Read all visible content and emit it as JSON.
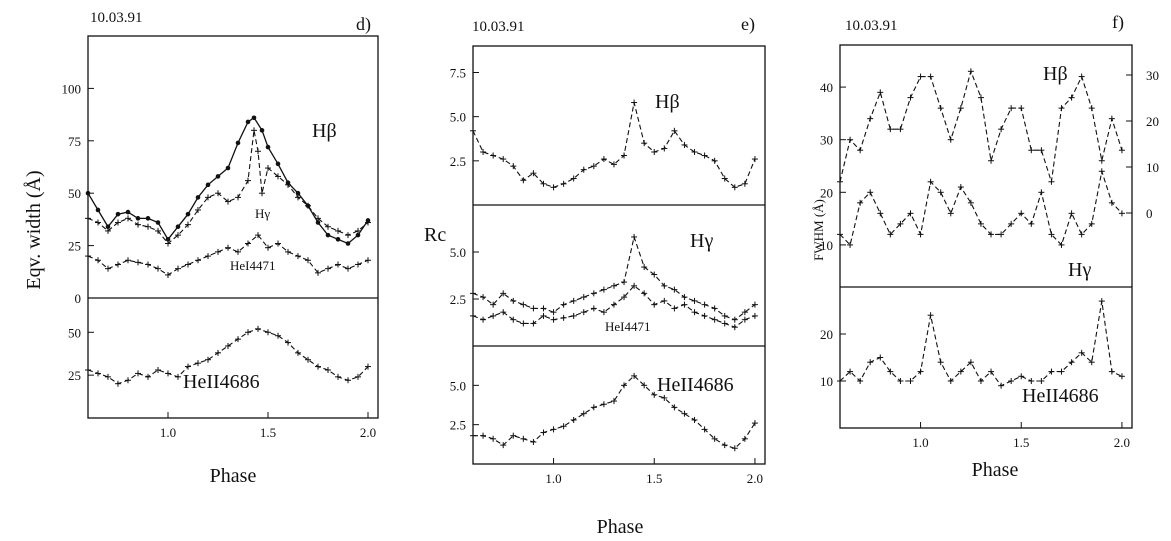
{
  "chart_data": [
    {
      "type": "line",
      "panel": "d)",
      "date": "10.03.91",
      "xlabel": "Phase",
      "ylabel": "Eqv. width (Å)",
      "x_ticks": [
        "1.0",
        "1.5",
        "2.0"
      ],
      "x_range": [
        0.6,
        2.05
      ],
      "subplots": [
        {
          "y_range": [
            0,
            125
          ],
          "y_ticks": [
            "0",
            "25",
            "50",
            "75",
            "100"
          ],
          "series": [
            {
              "name": "Hβ",
              "style": "solid",
              "x": [
                0.6,
                0.65,
                0.7,
                0.75,
                0.8,
                0.85,
                0.9,
                0.95,
                1.0,
                1.05,
                1.1,
                1.15,
                1.2,
                1.25,
                1.3,
                1.35,
                1.4,
                1.43,
                1.47,
                1.5,
                1.55,
                1.6,
                1.65,
                1.7,
                1.75,
                1.8,
                1.85,
                1.9,
                1.95,
                2.0
              ],
              "y": [
                50,
                42,
                34,
                40,
                41,
                38,
                38,
                36,
                28,
                34,
                40,
                48,
                54,
                58,
                62,
                74,
                84,
                86,
                80,
                72,
                64,
                55,
                50,
                44,
                36,
                30,
                28,
                26,
                30,
                37
              ]
            },
            {
              "name": "Hγ",
              "style": "dashed",
              "x": [
                0.6,
                0.65,
                0.7,
                0.75,
                0.8,
                0.85,
                0.9,
                0.95,
                1.0,
                1.05,
                1.1,
                1.15,
                1.2,
                1.25,
                1.3,
                1.35,
                1.4,
                1.43,
                1.45,
                1.47,
                1.5,
                1.55,
                1.6,
                1.65,
                1.7,
                1.75,
                1.8,
                1.85,
                1.9,
                1.95,
                2.0
              ],
              "y": [
                38,
                36,
                32,
                36,
                38,
                35,
                34,
                32,
                26,
                30,
                35,
                42,
                48,
                50,
                46,
                48,
                56,
                80,
                70,
                50,
                62,
                58,
                54,
                48,
                44,
                38,
                34,
                32,
                30,
                32,
                36
              ]
            },
            {
              "name": "HeI4471",
              "style": "dashed",
              "x": [
                0.6,
                0.65,
                0.7,
                0.75,
                0.8,
                0.85,
                0.9,
                0.95,
                1.0,
                1.05,
                1.1,
                1.15,
                1.2,
                1.25,
                1.3,
                1.35,
                1.4,
                1.45,
                1.5,
                1.55,
                1.6,
                1.65,
                1.7,
                1.75,
                1.8,
                1.85,
                1.9,
                1.95,
                2.0
              ],
              "y": [
                20,
                18,
                14,
                16,
                18,
                17,
                16,
                14,
                11,
                14,
                16,
                18,
                20,
                22,
                24,
                22,
                26,
                30,
                24,
                26,
                22,
                20,
                18,
                12,
                14,
                16,
                14,
                16,
                18
              ]
            }
          ]
        },
        {
          "y_range": [
            0,
            70
          ],
          "y_ticks": [
            "25",
            "50"
          ],
          "series": [
            {
              "name": "HeII4686",
              "style": "dashed",
              "x": [
                0.6,
                0.65,
                0.7,
                0.75,
                0.8,
                0.85,
                0.9,
                0.95,
                1.0,
                1.05,
                1.1,
                1.15,
                1.2,
                1.25,
                1.3,
                1.35,
                1.4,
                1.45,
                1.5,
                1.55,
                1.6,
                1.65,
                1.7,
                1.75,
                1.8,
                1.85,
                1.9,
                1.95,
                2.0
              ],
              "y": [
                28,
                26,
                24,
                20,
                22,
                26,
                24,
                28,
                26,
                24,
                30,
                32,
                34,
                38,
                42,
                46,
                50,
                52,
                50,
                48,
                44,
                38,
                34,
                30,
                28,
                24,
                22,
                24,
                30
              ]
            }
          ]
        }
      ],
      "line_labels": [
        "Hβ",
        "Hγ",
        "HeI4471",
        "HeII4686"
      ]
    },
    {
      "type": "line",
      "panel": "e)",
      "date": "10.03.91",
      "xlabel": "Phase",
      "ylabel": "Rc",
      "x_ticks": [
        "1.0",
        "1.5",
        "2.0"
      ],
      "x_range": [
        0.6,
        2.05
      ],
      "subplots": [
        {
          "y_range": [
            0,
            9
          ],
          "y_ticks": [
            "2.5",
            "5.0",
            "7.5"
          ],
          "series": [
            {
              "name": "Hβ",
              "style": "dashed",
              "x": [
                0.6,
                0.65,
                0.7,
                0.75,
                0.8,
                0.85,
                0.9,
                0.95,
                1.0,
                1.05,
                1.1,
                1.15,
                1.2,
                1.25,
                1.3,
                1.35,
                1.4,
                1.45,
                1.5,
                1.55,
                1.6,
                1.65,
                1.7,
                1.75,
                1.8,
                1.85,
                1.9,
                1.95,
                2.0
              ],
              "y": [
                4.2,
                3.0,
                2.8,
                2.6,
                2.2,
                1.4,
                1.8,
                1.2,
                1.0,
                1.2,
                1.5,
                2.0,
                2.2,
                2.6,
                2.3,
                2.8,
                5.8,
                3.5,
                3.0,
                3.2,
                4.2,
                3.4,
                3.0,
                2.8,
                2.5,
                1.5,
                1.0,
                1.2,
                2.6
              ]
            }
          ]
        },
        {
          "y_range": [
            0,
            7.5
          ],
          "y_ticks": [
            "2.5",
            "5.0"
          ],
          "series": [
            {
              "name": "Hγ",
              "style": "dashed",
              "x": [
                0.6,
                0.65,
                0.7,
                0.75,
                0.8,
                0.85,
                0.9,
                0.95,
                1.0,
                1.05,
                1.1,
                1.15,
                1.2,
                1.25,
                1.3,
                1.35,
                1.4,
                1.45,
                1.5,
                1.55,
                1.6,
                1.65,
                1.7,
                1.75,
                1.8,
                1.85,
                1.9,
                1.95,
                2.0
              ],
              "y": [
                2.8,
                2.6,
                2.2,
                2.8,
                2.4,
                2.2,
                2.0,
                2.0,
                1.8,
                2.2,
                2.4,
                2.6,
                2.8,
                3.0,
                3.2,
                3.4,
                5.8,
                4.2,
                3.8,
                3.2,
                3.0,
                2.6,
                2.4,
                2.2,
                2.0,
                1.6,
                1.4,
                1.8,
                2.2
              ]
            },
            {
              "name": "HeI4471",
              "style": "dashed",
              "x": [
                0.6,
                0.65,
                0.7,
                0.75,
                0.8,
                0.85,
                0.9,
                0.95,
                1.0,
                1.05,
                1.1,
                1.15,
                1.2,
                1.25,
                1.3,
                1.35,
                1.4,
                1.45,
                1.5,
                1.55,
                1.6,
                1.65,
                1.7,
                1.75,
                1.8,
                1.85,
                1.9,
                1.95,
                2.0
              ],
              "y": [
                1.6,
                1.4,
                1.6,
                1.8,
                1.4,
                1.2,
                1.2,
                1.6,
                1.4,
                1.5,
                1.6,
                1.8,
                2.0,
                1.8,
                2.2,
                2.6,
                3.2,
                2.8,
                2.2,
                2.4,
                2.0,
                2.2,
                1.8,
                1.6,
                1.4,
                1.2,
                1.0,
                1.4,
                1.6
              ]
            }
          ]
        },
        {
          "y_range": [
            0,
            7.5
          ],
          "y_ticks": [
            "2.5",
            "5.0"
          ],
          "series": [
            {
              "name": "HeII4686",
              "style": "dashed",
              "x": [
                0.6,
                0.65,
                0.7,
                0.75,
                0.8,
                0.85,
                0.9,
                0.95,
                1.0,
                1.05,
                1.1,
                1.15,
                1.2,
                1.25,
                1.3,
                1.35,
                1.4,
                1.45,
                1.5,
                1.55,
                1.6,
                1.65,
                1.7,
                1.75,
                1.8,
                1.85,
                1.9,
                1.95,
                2.0
              ],
              "y": [
                1.8,
                1.8,
                1.6,
                1.2,
                1.8,
                1.6,
                1.4,
                2.0,
                2.2,
                2.4,
                2.8,
                3.2,
                3.6,
                3.8,
                4.0,
                5.0,
                5.6,
                5.0,
                4.4,
                4.2,
                3.6,
                3.2,
                2.8,
                2.2,
                1.6,
                1.2,
                1.0,
                1.6,
                2.6
              ]
            }
          ]
        }
      ],
      "line_labels": [
        "Hβ",
        "Hγ",
        "HeI4471",
        "HeII4686"
      ]
    },
    {
      "type": "line",
      "panel": "f)",
      "date": "10.03.91",
      "xlabel": "Phase",
      "ylabel": "FWHM (Å)",
      "x_ticks": [
        "1.0",
        "1.5",
        "2.0"
      ],
      "x_range": [
        0.6,
        2.05
      ],
      "subplots": [
        {
          "y_range": [
            2,
            48
          ],
          "y_ticks": [
            "10",
            "20",
            "30",
            "40"
          ],
          "right_y_ticks": [
            "0",
            "10",
            "20",
            "30"
          ],
          "series": [
            {
              "name": "Hβ",
              "style": "dashed",
              "x": [
                0.6,
                0.65,
                0.7,
                0.75,
                0.8,
                0.85,
                0.9,
                0.95,
                1.0,
                1.05,
                1.1,
                1.15,
                1.2,
                1.25,
                1.3,
                1.35,
                1.4,
                1.45,
                1.5,
                1.55,
                1.6,
                1.65,
                1.7,
                1.75,
                1.8,
                1.85,
                1.9,
                1.95,
                2.0
              ],
              "y": [
                22,
                30,
                28,
                34,
                39,
                32,
                32,
                38,
                42,
                42,
                36,
                30,
                36,
                43,
                38,
                26,
                32,
                36,
                36,
                28,
                28,
                22,
                36,
                38,
                42,
                36,
                26,
                34,
                28
              ]
            },
            {
              "name": "Hγ",
              "style": "dashed",
              "x": [
                0.6,
                0.65,
                0.7,
                0.75,
                0.8,
                0.85,
                0.9,
                0.95,
                1.0,
                1.05,
                1.1,
                1.15,
                1.2,
                1.25,
                1.3,
                1.35,
                1.4,
                1.45,
                1.5,
                1.55,
                1.6,
                1.65,
                1.7,
                1.75,
                1.8,
                1.85,
                1.9,
                1.95,
                2.0
              ],
              "y": [
                12,
                10,
                18,
                20,
                16,
                12,
                14,
                16,
                12,
                22,
                20,
                16,
                21,
                18,
                14,
                12,
                12,
                14,
                16,
                14,
                20,
                12,
                10,
                16,
                12,
                14,
                24,
                18,
                16
              ]
            }
          ]
        },
        {
          "y_range": [
            0,
            30
          ],
          "y_ticks": [
            "10",
            "20"
          ],
          "series": [
            {
              "name": "HeII4686",
              "style": "dashed",
              "x": [
                0.6,
                0.65,
                0.7,
                0.75,
                0.8,
                0.85,
                0.9,
                0.95,
                1.0,
                1.05,
                1.1,
                1.15,
                1.2,
                1.25,
                1.3,
                1.35,
                1.4,
                1.45,
                1.5,
                1.55,
                1.6,
                1.65,
                1.7,
                1.75,
                1.8,
                1.85,
                1.9,
                1.95,
                2.0
              ],
              "y": [
                10,
                12,
                10,
                14,
                15,
                12,
                10,
                10,
                12,
                24,
                14,
                10,
                12,
                14,
                10,
                12,
                9,
                10,
                11,
                10,
                10,
                12,
                12,
                14,
                16,
                14,
                27,
                12,
                11
              ]
            }
          ]
        }
      ],
      "line_labels": [
        "Hβ",
        "Hγ",
        "HeII4686"
      ]
    }
  ]
}
